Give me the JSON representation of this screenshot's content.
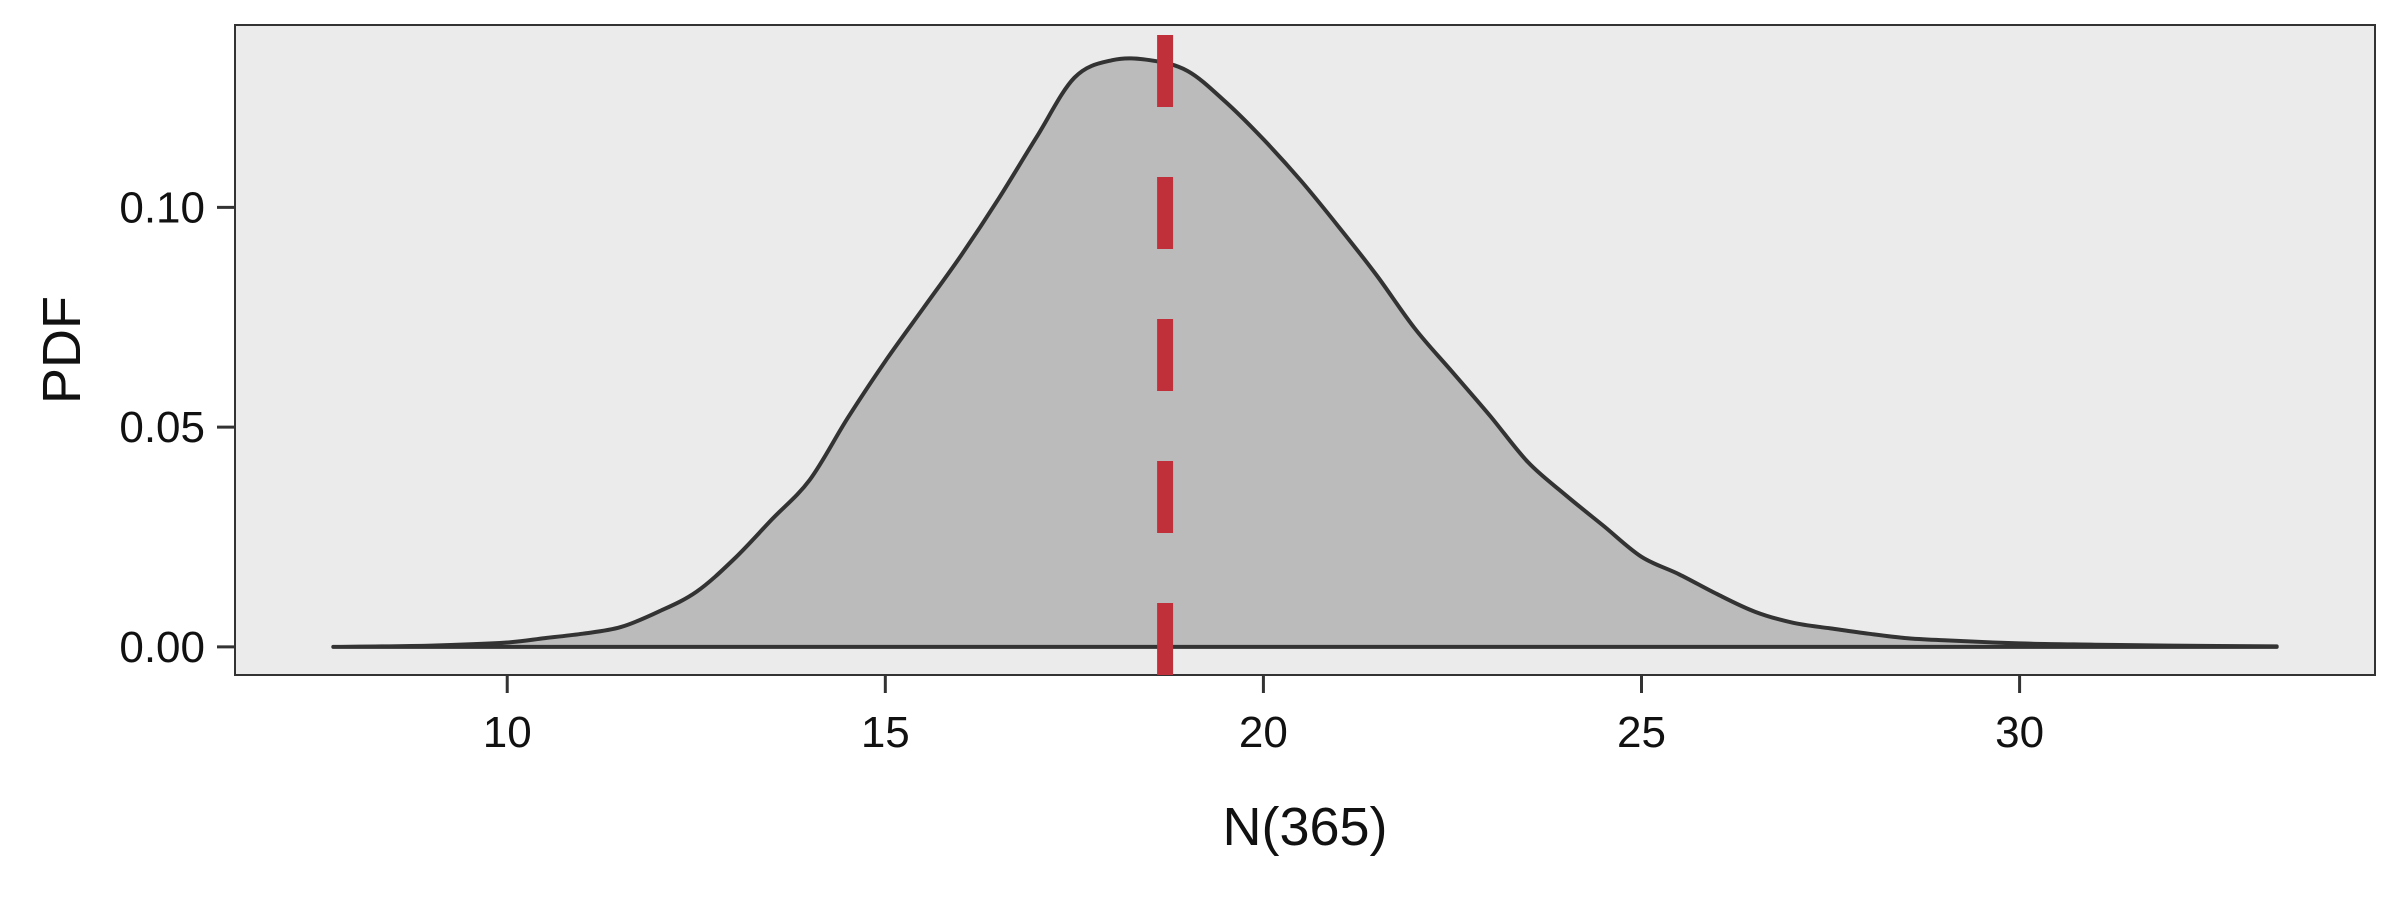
{
  "chart_data": {
    "type": "area",
    "title": "",
    "xlabel": "N(365)",
    "ylabel": "PDF",
    "xlim": [
      6.4,
      34.7
    ],
    "ylim": [
      -0.0064,
      0.1415
    ],
    "xticks": [
      "10",
      "15",
      "20",
      "25",
      "30"
    ],
    "yticks": [
      "0.00",
      "0.05",
      "0.10"
    ],
    "grid": false,
    "legend": "none",
    "colors": {
      "panel": "#ebebeb",
      "fill": "#bbbbbb",
      "line": "#333333",
      "reference": "#c0303a"
    },
    "series": [
      {
        "x": [
          7.7,
          9,
          10,
          10.5,
          11,
          11.5,
          12,
          12.5,
          13,
          13.5,
          14,
          14.5,
          15,
          15.5,
          16,
          16.5,
          17,
          17.5,
          18,
          18.5,
          19,
          19.5,
          20,
          20.5,
          21,
          21.5,
          22,
          22.5,
          23,
          23.5,
          24,
          24.5,
          25,
          25.5,
          26,
          26.5,
          27,
          27.5,
          28,
          28.5,
          29,
          30,
          31,
          32,
          33.4
        ],
        "y": [
          0.0,
          0.0003,
          0.001,
          0.002,
          0.003,
          0.0045,
          0.008,
          0.0125,
          0.02,
          0.029,
          0.038,
          0.052,
          0.065,
          0.077,
          0.089,
          0.102,
          0.116,
          0.1295,
          0.1335,
          0.1335,
          0.131,
          0.124,
          0.1155,
          0.106,
          0.0955,
          0.0845,
          0.0725,
          0.0625,
          0.0525,
          0.042,
          0.0345,
          0.0275,
          0.0205,
          0.0165,
          0.012,
          0.008,
          0.0055,
          0.0042,
          0.003,
          0.002,
          0.0015,
          0.0008,
          0.0005,
          0.0003,
          0.0001
        ]
      }
    ],
    "reference_line": {
      "x": 18.7,
      "style": "dashed"
    }
  }
}
